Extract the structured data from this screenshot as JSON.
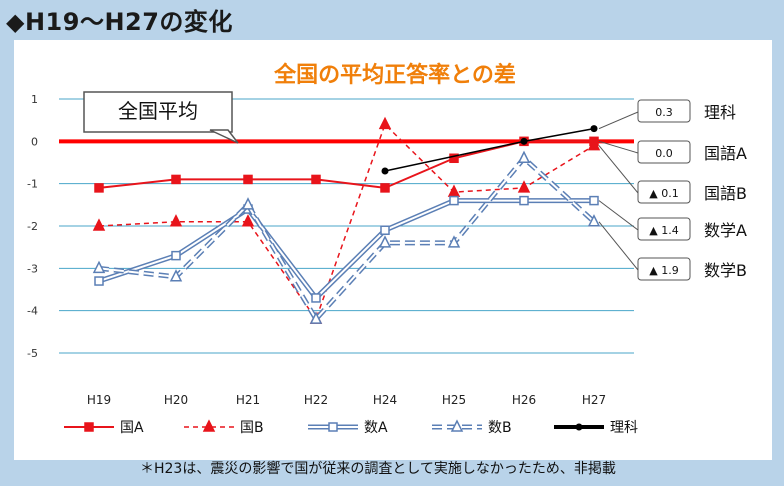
{
  "slide": {
    "header": "◆H19～H27の変化",
    "footnote": "＊H23は、震災の影響で国が従来の調査として実施しなかったため、非掲載"
  },
  "chart_data": {
    "type": "line",
    "title": "全国の平均正答率との差",
    "callout": "全国平均",
    "categories": [
      "H19",
      "H20",
      "H21",
      "H22",
      "H24",
      "H25",
      "H26",
      "H27"
    ],
    "y_ticks": [
      "1",
      "0",
      "-1",
      "-2",
      "-3",
      "-4",
      "-5"
    ],
    "ylim": [
      -5,
      1
    ],
    "series": [
      {
        "name": "国A",
        "color": "#e8141b",
        "style": "solid-square",
        "values": [
          -1.1,
          -0.9,
          -0.9,
          -0.9,
          -1.1,
          -0.4,
          0.0,
          0.0
        ]
      },
      {
        "name": "国B",
        "color": "#e8141b",
        "style": "dashed-triangle",
        "values": [
          -2.0,
          -1.9,
          -1.9,
          -4.2,
          0.4,
          -1.2,
          -1.1,
          -0.1
        ]
      },
      {
        "name": "数A",
        "color": "#5b7fb5",
        "style": "double-square",
        "values": [
          -3.3,
          -2.7,
          -1.6,
          -3.7,
          -2.1,
          -1.4,
          -1.4,
          -1.4
        ]
      },
      {
        "name": "数B",
        "color": "#5b7fb5",
        "style": "double-dashed-triangle",
        "values": [
          -3.0,
          -3.2,
          -1.5,
          -4.2,
          -2.4,
          -2.4,
          -0.4,
          -1.9
        ]
      },
      {
        "name": "理科",
        "color": "#000000",
        "style": "solid-circle",
        "values": [
          null,
          null,
          null,
          null,
          -0.7,
          null,
          0.0,
          0.3
        ]
      }
    ],
    "end_labels": [
      {
        "value": "0.3",
        "subject": "理科"
      },
      {
        "value": "0.0",
        "subject": "国語A"
      },
      {
        "value": "▲ 0.1",
        "subject": "国語B"
      },
      {
        "value": "▲ 1.4",
        "subject": "数学A"
      },
      {
        "value": "▲ 1.9",
        "subject": "数学B"
      }
    ]
  }
}
